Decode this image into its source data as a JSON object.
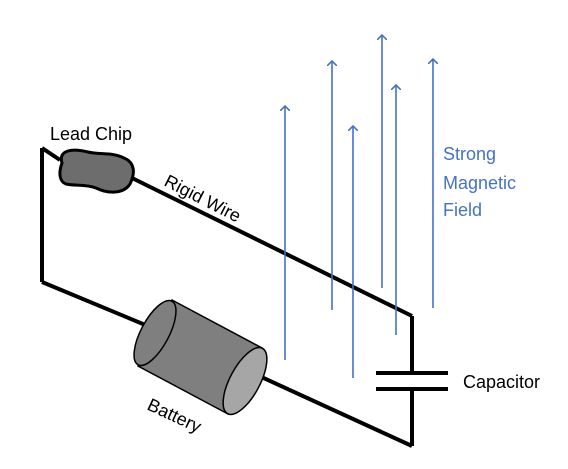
{
  "labels": {
    "lead_chip": "Lead Chip",
    "rigid_wire": "Rigid Wire",
    "battery": "Battery",
    "capacitor": "Capacitor",
    "field_line1": "Strong",
    "field_line2": "Magnetic",
    "field_line3": "Field"
  },
  "colors": {
    "wire": "#000000",
    "field_arrows": "#4472c4",
    "field_text": "#4472c4",
    "battery_body": "#7f7f7f",
    "battery_cap": "#a6a6a6",
    "lead_chip": "#6d6d6d"
  },
  "icons": {
    "battery": "cylinder-battery-icon",
    "capacitor": "parallel-plate-capacitor-icon",
    "lead_chip": "lead-chip-blob-icon"
  }
}
